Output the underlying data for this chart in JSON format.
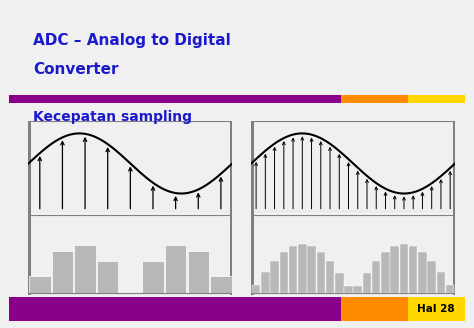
{
  "title_line1": "ADC – Analog to Digital",
  "title_line2": "Converter",
  "subtitle": "Kecepatan sampling",
  "page_label": "Hal 28",
  "bg_color": "#f0f0f0",
  "title_color": "#1a1acc",
  "subtitle_color": "#1a1acc",
  "bar_purple": "#8B008B",
  "bar_orange": "#FF8C00",
  "bar_yellow": "#FFD700",
  "signal_color": "#111111",
  "fill_color": "#b8b8b8",
  "header_line_purple": "#8B008B",
  "header_line_orange": "#FF8C00",
  "header_line_yellow": "#FFD700",
  "n_samples_low": 9,
  "n_samples_high": 22
}
